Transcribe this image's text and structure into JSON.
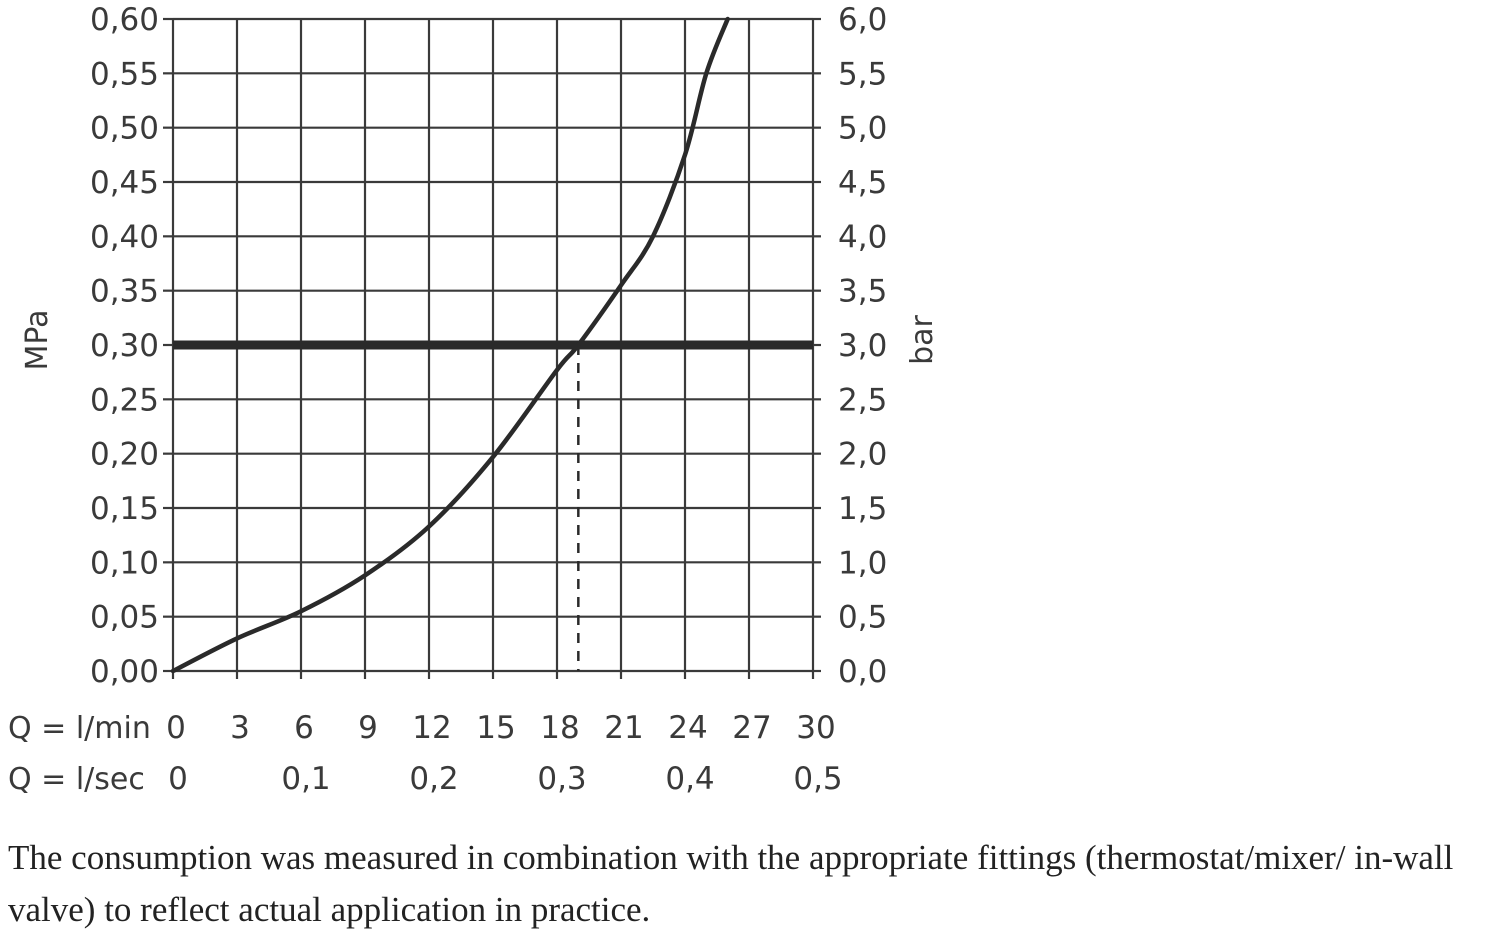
{
  "chart_data": {
    "type": "line",
    "y_left": {
      "label": "MPa",
      "ticks": [
        "0,00",
        "0,05",
        "0,10",
        "0,15",
        "0,20",
        "0,25",
        "0,30",
        "0,35",
        "0,40",
        "0,45",
        "0,50",
        "0,55",
        "0,60"
      ],
      "ylim": [
        0,
        0.6
      ]
    },
    "y_right": {
      "label": "bar",
      "ticks": [
        "0,0",
        "0,5",
        "1,0",
        "1,5",
        "2,0",
        "2,5",
        "3,0",
        "3,5",
        "4,0",
        "4,5",
        "5,0",
        "5,5",
        "6,0"
      ],
      "ylim": [
        0,
        6
      ]
    },
    "x_lmin": {
      "label": "Q = l/min",
      "ticks": [
        "0",
        "3",
        "6",
        "9",
        "12",
        "15",
        "18",
        "21",
        "24",
        "27",
        "30"
      ],
      "xlim": [
        0,
        30
      ]
    },
    "x_lsec": {
      "label": "Q = l/sec",
      "ticks": [
        {
          "value": 0,
          "text": "0"
        },
        {
          "value": 0.1,
          "text": "0,1"
        },
        {
          "value": 0.2,
          "text": "0,2"
        },
        {
          "value": 0.3,
          "text": "0,3"
        },
        {
          "value": 0.4,
          "text": "0,4"
        },
        {
          "value": 0.5,
          "text": "0,5"
        }
      ]
    },
    "grid": true,
    "series": [
      {
        "points": [
          [
            0,
            0
          ],
          [
            3,
            0.03
          ],
          [
            6,
            0.055
          ],
          [
            9,
            0.088
          ],
          [
            12,
            0.133
          ],
          [
            15,
            0.197
          ],
          [
            18,
            0.277
          ],
          [
            19,
            0.3
          ],
          [
            21,
            0.355
          ],
          [
            22.5,
            0.4
          ],
          [
            24,
            0.475
          ],
          [
            25,
            0.55
          ],
          [
            26,
            0.6
          ]
        ]
      }
    ],
    "reference_line": {
      "y": 0.3
    },
    "marker": {
      "x": 19,
      "y": 0.3
    }
  },
  "caption": "The consumption was measured in combination with the appropriate fittings (thermostat/mixer/ in-wall valve) to reflect actual application in practice."
}
